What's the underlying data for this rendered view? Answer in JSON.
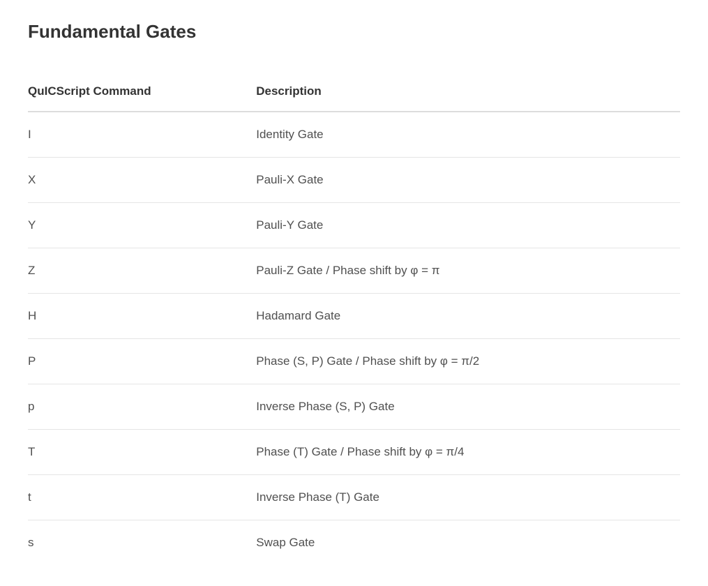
{
  "title": "Fundamental Gates",
  "table": {
    "columns": [
      {
        "key": "command",
        "label": "QuICScript Command"
      },
      {
        "key": "description",
        "label": "Description"
      }
    ],
    "rows": [
      {
        "command": "I",
        "description": "Identity Gate"
      },
      {
        "command": "X",
        "description": "Pauli-X Gate"
      },
      {
        "command": "Y",
        "description": "Pauli-Y Gate"
      },
      {
        "command": "Z",
        "description": "Pauli-Z Gate / Phase shift by φ = π"
      },
      {
        "command": "H",
        "description": "Hadamard Gate"
      },
      {
        "command": "P",
        "description": "Phase (S, P) Gate / Phase shift by φ = π/2"
      },
      {
        "command": "p",
        "description": "Inverse Phase (S, P) Gate"
      },
      {
        "command": "T",
        "description": "Phase (T) Gate / Phase shift by φ = π/4"
      },
      {
        "command": "t",
        "description": "Inverse Phase (T) Gate"
      },
      {
        "command": "s",
        "description": "Swap Gate"
      }
    ]
  },
  "styles": {
    "background_color": "#ffffff",
    "title_color": "#333333",
    "title_fontsize": 26,
    "title_fontweight": 700,
    "header_color": "#333333",
    "header_fontsize": 17,
    "header_fontweight": 700,
    "cell_color": "#505050",
    "cell_fontsize": 17,
    "header_border_color": "#dddddd",
    "row_border_color": "#e5e5e5",
    "column_widths": [
      "35%",
      "65%"
    ]
  }
}
